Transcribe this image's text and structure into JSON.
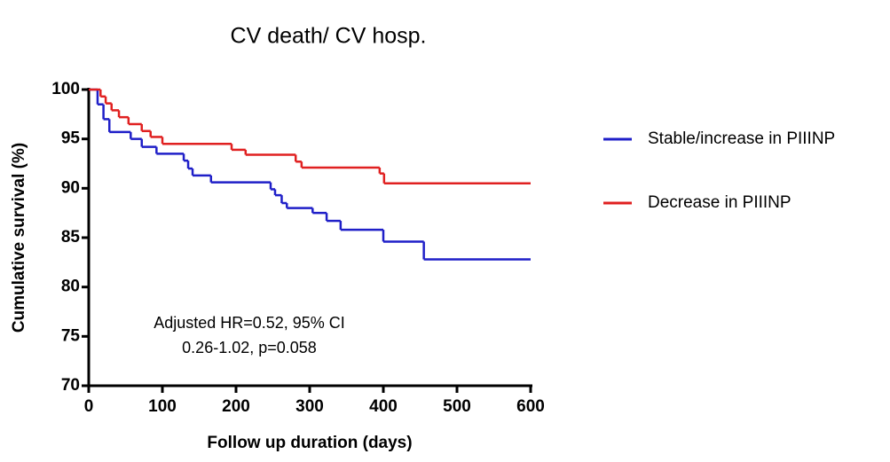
{
  "chart_data": {
    "type": "step",
    "title": "CV death/  CV hosp.",
    "xlabel": "Follow up duration (days)",
    "ylabel": "Cumulative survival (%)",
    "annotations": [
      "Adjusted HR=0.52, 95% CI",
      "0.26-1.02, p=0.058"
    ],
    "xlim": [
      0,
      600
    ],
    "ylim": [
      70,
      100
    ],
    "xticks": [
      0,
      100,
      200,
      300,
      400,
      500,
      600
    ],
    "yticks": [
      70,
      75,
      80,
      85,
      90,
      95,
      100
    ],
    "legend_position": "right",
    "series": [
      {
        "name": "Stable/increase in PIIINP",
        "color": "#1f1fc8",
        "x": [
          0,
          12,
          20,
          28,
          57,
          72,
          92,
          129,
          135,
          141,
          166,
          247,
          253,
          262,
          269,
          304,
          323,
          342,
          400,
          455,
          600
        ],
        "values": [
          100,
          98.5,
          97,
          95.7,
          95,
          94.2,
          93.5,
          92.8,
          92,
          91.3,
          90.6,
          89.9,
          89.3,
          88.5,
          88,
          87.5,
          86.7,
          85.8,
          84.6,
          82.8,
          82.8
        ]
      },
      {
        "name": "Decrease in PIIINP",
        "color": "#e02020",
        "x": [
          0,
          16,
          23,
          31,
          41,
          54,
          72,
          84,
          100,
          194,
          213,
          281,
          289,
          395,
          401,
          600
        ],
        "values": [
          100,
          99.3,
          98.6,
          97.9,
          97.2,
          96.5,
          95.8,
          95.2,
          94.5,
          93.9,
          93.4,
          92.7,
          92.1,
          91.5,
          90.5,
          90.5
        ]
      }
    ]
  }
}
